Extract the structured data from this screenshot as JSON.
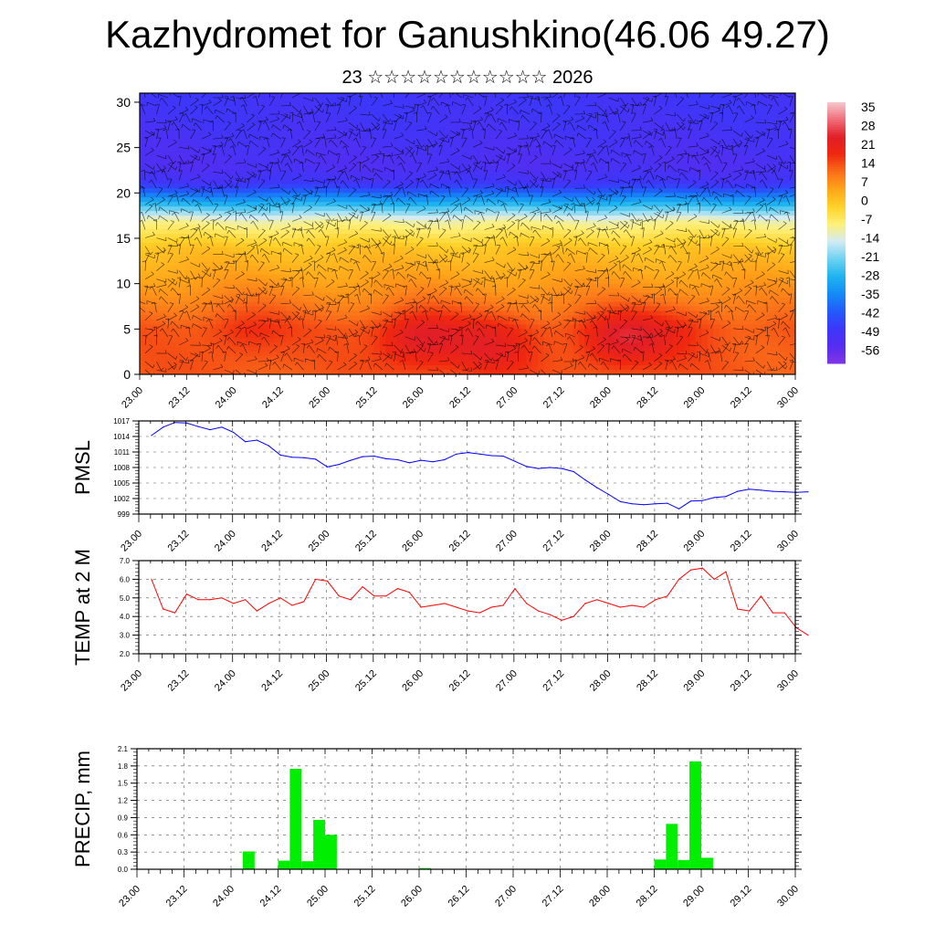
{
  "header": {
    "title": "Kazhydromet for Ganushkino(46.06 49.27)",
    "subtitle": "23 ☆☆☆☆☆☆☆☆☆☆☆ 2026"
  },
  "x_tick_labels": [
    "23.00",
    "23.12",
    "24.00",
    "24.12",
    "25.00",
    "25.12",
    "26.00",
    "26.12",
    "27.00",
    "27.12",
    "28.00",
    "28.12",
    "29.00",
    "29.12",
    "30.00"
  ],
  "colors": {
    "pmsl_line": "#0000ff",
    "temp_line": "#ff0000",
    "precip_bar": "#00ee00"
  },
  "chart_data": [
    {
      "type": "heatmap",
      "name": "upper-air temperature cross-section",
      "y_ticks": [
        0,
        5,
        10,
        15,
        20,
        25,
        30
      ],
      "ylim": [
        0,
        31
      ],
      "colorbar_labels": [
        "35",
        "28",
        "21",
        "14",
        "7",
        "0",
        "-7",
        "-14",
        "-21",
        "-28",
        "-35",
        "-42",
        "-49",
        "-56"
      ],
      "colorbar_range": [
        -63,
        42
      ],
      "hot_spots": [
        {
          "x": 2.3,
          "y": 5,
          "value": 21
        },
        {
          "x": 6.0,
          "y": 4,
          "value": 28
        },
        {
          "x": 7.5,
          "y": 3,
          "value": 25
        },
        {
          "x": 10.3,
          "y": 4,
          "value": 28
        },
        {
          "x": 11.5,
          "y": 5,
          "value": 20
        }
      ]
    },
    {
      "type": "line",
      "ylabel": "PMSL",
      "y_ticks": [
        "1017",
        "1014",
        "1011",
        "1008",
        "1005",
        "1002",
        "999"
      ],
      "ylim": [
        999,
        1017
      ],
      "x_step_hours": 3,
      "values": [
        1014.2,
        1015.8,
        1016.7,
        1016.6,
        1015.9,
        1015.3,
        1015.8,
        1014.8,
        1013.0,
        1013.3,
        1012.2,
        1010.4,
        1010.0,
        1009.9,
        1009.6,
        1008.1,
        1008.6,
        1009.4,
        1010.1,
        1010.2,
        1009.7,
        1009.5,
        1008.9,
        1009.4,
        1009.1,
        1009.5,
        1010.6,
        1010.9,
        1010.6,
        1010.3,
        1010.2,
        1009.2,
        1008.2,
        1007.8,
        1008.0,
        1007.8,
        1007.2,
        1005.6,
        1004.1,
        1002.8,
        1001.4,
        1001.0,
        1000.8,
        1001.0,
        1001.1,
        1000.0,
        1001.5,
        1001.6,
        1002.2,
        1002.4,
        1003.4,
        1003.8,
        1003.6,
        1003.4,
        1003.3,
        1003.2,
        1003.3
      ]
    },
    {
      "type": "line",
      "ylabel": "TEMP at 2 M",
      "y_ticks": [
        "7.0",
        "6.0",
        "5.0",
        "4.0",
        "3.0",
        "2.0"
      ],
      "ylim": [
        2.0,
        7.0
      ],
      "x_step_hours": 3,
      "values": [
        6.0,
        4.4,
        4.2,
        5.2,
        4.9,
        4.9,
        5.0,
        4.7,
        4.9,
        4.3,
        4.7,
        5.0,
        4.6,
        4.8,
        6.0,
        5.9,
        5.1,
        4.9,
        5.6,
        5.1,
        5.1,
        5.5,
        5.3,
        4.5,
        4.6,
        4.7,
        4.5,
        4.3,
        4.2,
        4.5,
        4.6,
        5.5,
        4.7,
        4.3,
        4.1,
        3.8,
        4.0,
        4.7,
        4.9,
        4.7,
        4.5,
        4.6,
        4.5,
        4.9,
        5.1,
        6.0,
        6.5,
        6.6,
        6.0,
        6.4,
        4.4,
        4.3,
        5.1,
        4.2,
        4.2,
        3.4,
        3.0
      ]
    },
    {
      "type": "bar",
      "ylabel": "PRECIP, mm",
      "y_ticks": [
        "2.1",
        "1.8",
        "1.5",
        "1.2",
        "0.9",
        "0.6",
        "0.3",
        "0.0"
      ],
      "ylim": [
        0.0,
        2.1
      ],
      "x_step_hours": 3,
      "values": [
        0,
        0,
        0,
        0,
        0,
        0,
        0,
        0,
        0.01,
        0.31,
        0,
        0,
        0.15,
        1.75,
        0.14,
        0.86,
        0.6,
        0,
        0,
        0,
        0,
        0,
        0,
        0,
        0.02,
        0,
        0,
        0,
        0,
        0,
        0,
        0,
        0,
        0,
        0,
        0,
        0,
        0,
        0,
        0,
        0,
        0,
        0,
        0,
        0.17,
        0.79,
        0.16,
        1.88,
        0.2,
        0,
        0,
        0,
        0,
        0,
        0,
        0
      ]
    }
  ]
}
